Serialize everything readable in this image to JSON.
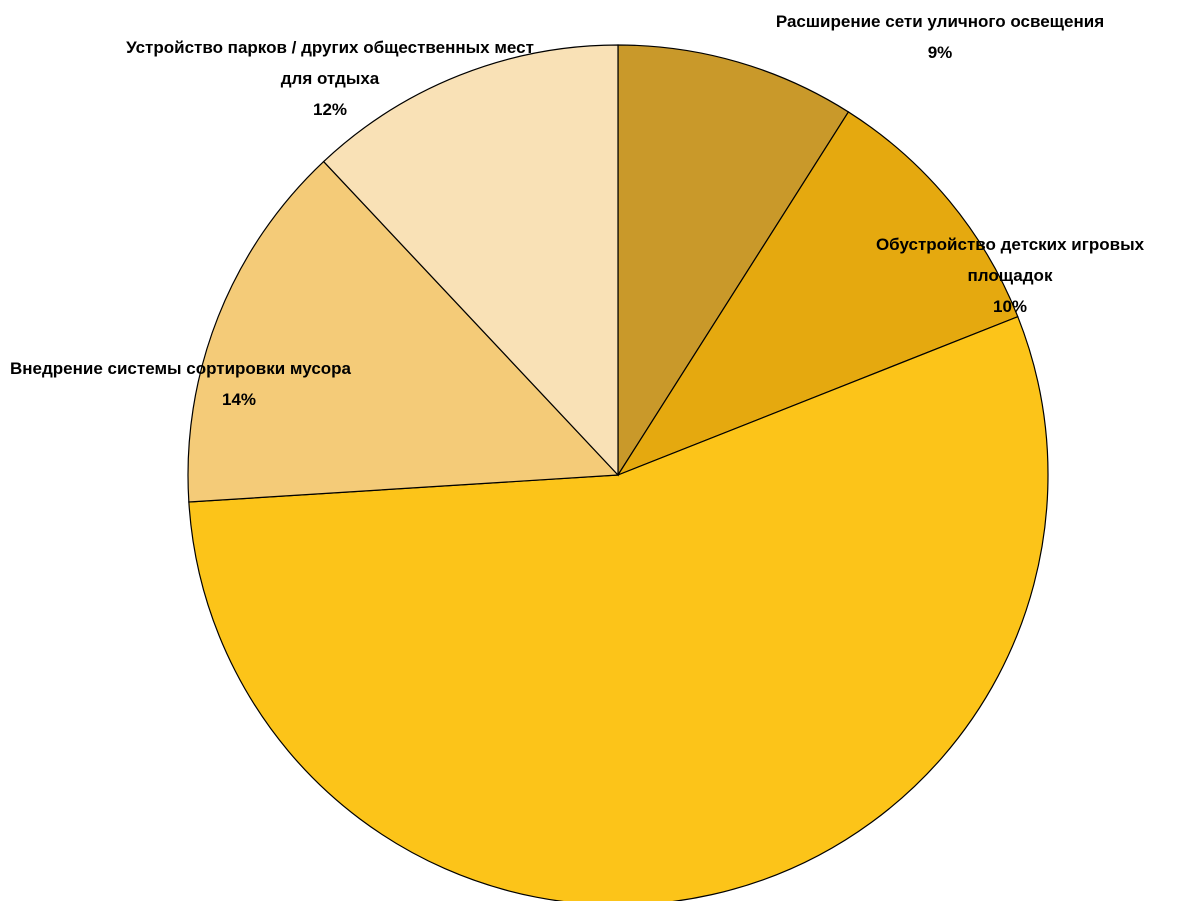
{
  "chart_data": {
    "type": "pie",
    "categories": [
      "Расширение сети уличного освещения",
      "Обустройство детских игровых площадок",
      null,
      "Внедрение системы сортировки мусора",
      "Устройство парков / других общественных мест для отдыха"
    ],
    "values": [
      9,
      10,
      55,
      14,
      12
    ],
    "value_labels": [
      "9%",
      "10%",
      null,
      "14%",
      "12%"
    ],
    "colors": [
      "#c9992a",
      "#e5a90f",
      "#fcc419",
      "#f4cb78",
      "#f9e1b6"
    ]
  }
}
